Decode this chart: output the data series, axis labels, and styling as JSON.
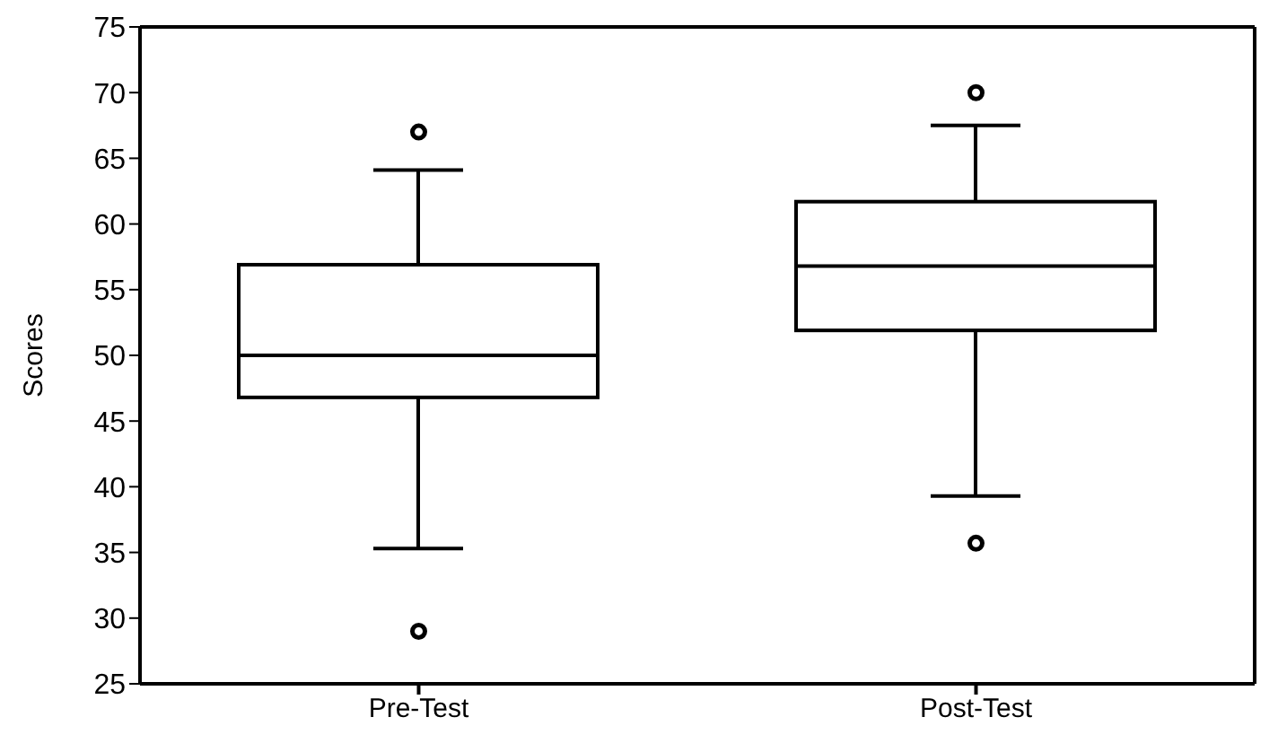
{
  "chart_data": {
    "type": "box",
    "ylabel": "Scores",
    "categories": [
      "Pre-Test",
      "Post-Test"
    ],
    "color": "#000000",
    "boxes": [
      {
        "low": 35.3,
        "q1": 46.8,
        "median": 50,
        "q3": 56.9,
        "high": 64.1,
        "outliers": [
          67,
          29
        ]
      },
      {
        "low": 39.3,
        "q1": 51.9,
        "median": 56.8,
        "q3": 61.7,
        "high": 67.5,
        "outliers": [
          70,
          35.7
        ]
      }
    ],
    "ylim": [
      25,
      75
    ],
    "yticks": [
      25,
      30,
      35,
      40,
      45,
      50,
      55,
      60,
      65,
      70,
      75
    ],
    "grid": false,
    "legend": false
  }
}
